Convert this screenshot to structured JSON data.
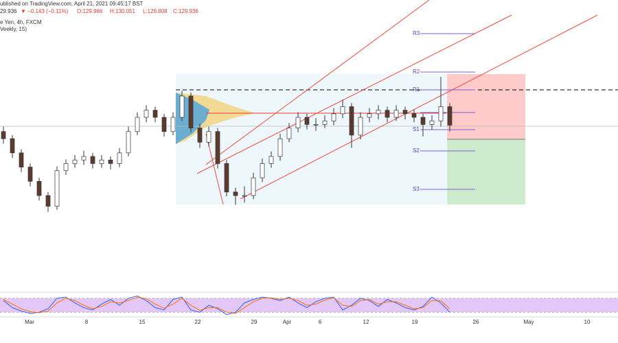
{
  "header": {
    "source": "ublished on TradingView.com, April 21, 2021 09:45:17 BST",
    "price": "29.936",
    "change": "▼ −0.143 (−0.11%)",
    "open": "O:129.966",
    "high": "H:130.051",
    "low": "L:129.808",
    "close": "C:129.936",
    "symbol": "e Yen, 4h, FXCM",
    "indicator": "Veekly, 15)"
  },
  "chart_data": {
    "type": "candlestick",
    "ylim": [
      127.6,
      131.7
    ],
    "ohlc": [
      [
        129.85,
        129.92,
        129.68,
        129.75
      ],
      [
        129.75,
        129.8,
        129.48,
        129.55
      ],
      [
        129.55,
        129.6,
        129.28,
        129.35
      ],
      [
        129.35,
        129.4,
        129.08,
        129.15
      ],
      [
        129.15,
        129.2,
        128.88,
        128.95
      ],
      [
        128.95,
        129.0,
        128.72,
        128.8
      ],
      [
        128.8,
        129.36,
        128.75,
        129.3
      ],
      [
        129.3,
        129.46,
        129.24,
        129.4
      ],
      [
        129.4,
        129.52,
        129.34,
        129.45
      ],
      [
        129.45,
        129.58,
        129.38,
        129.5
      ],
      [
        129.5,
        129.55,
        129.33,
        129.4
      ],
      [
        129.4,
        129.52,
        129.34,
        129.45
      ],
      [
        129.45,
        129.5,
        129.32,
        129.4
      ],
      [
        129.4,
        129.62,
        129.35,
        129.55
      ],
      [
        129.55,
        129.92,
        129.5,
        129.85
      ],
      [
        129.85,
        130.12,
        129.8,
        130.05
      ],
      [
        130.05,
        130.22,
        129.98,
        130.15
      ],
      [
        130.15,
        130.2,
        129.98,
        130.05
      ],
      [
        130.05,
        130.1,
        129.78,
        129.85
      ],
      [
        129.85,
        130.12,
        129.8,
        130.05
      ],
      [
        130.05,
        130.42,
        130.0,
        130.35
      ],
      [
        130.35,
        130.4,
        129.84,
        129.9
      ],
      [
        129.9,
        129.96,
        129.62,
        129.7
      ],
      [
        129.7,
        129.92,
        129.64,
        129.85
      ],
      [
        129.85,
        129.9,
        129.33,
        129.4
      ],
      [
        129.4,
        129.45,
        128.94,
        129.0
      ],
      [
        129.0,
        129.06,
        128.82,
        128.95
      ],
      [
        128.95,
        129.08,
        128.85,
        128.95
      ],
      [
        128.95,
        129.27,
        128.9,
        129.2
      ],
      [
        129.2,
        129.47,
        129.14,
        129.4
      ],
      [
        129.4,
        129.57,
        129.34,
        129.5
      ],
      [
        129.5,
        129.82,
        129.44,
        129.75
      ],
      [
        129.75,
        129.97,
        129.7,
        129.9
      ],
      [
        129.9,
        130.12,
        129.84,
        130.05
      ],
      [
        130.05,
        130.1,
        129.88,
        129.95
      ],
      [
        129.95,
        130.04,
        129.86,
        129.95
      ],
      [
        129.95,
        130.08,
        129.9,
        130.0
      ],
      [
        130.0,
        130.18,
        129.94,
        130.1
      ],
      [
        130.1,
        130.3,
        130.04,
        130.2
      ],
      [
        130.2,
        130.25,
        129.62,
        129.8
      ],
      [
        129.8,
        130.12,
        129.74,
        130.05
      ],
      [
        130.05,
        130.18,
        129.98,
        130.1
      ],
      [
        130.1,
        130.22,
        130.02,
        130.15
      ],
      [
        130.15,
        130.2,
        129.98,
        130.05
      ],
      [
        130.05,
        130.22,
        130.0,
        130.15
      ],
      [
        130.15,
        130.2,
        130.02,
        130.1
      ],
      [
        130.1,
        130.16,
        129.98,
        130.05
      ],
      [
        130.05,
        130.1,
        129.78,
        129.95
      ],
      [
        129.95,
        130.08,
        129.88,
        130.0
      ],
      [
        130.0,
        130.62,
        129.92,
        130.2
      ],
      [
        130.2,
        130.25,
        129.85,
        129.94
      ]
    ],
    "up_color": "#ffffff",
    "down_color": "#5d3a2e",
    "pivots": [
      "R3",
      "R2",
      "R1",
      "S1",
      "S2",
      "S3"
    ],
    "xtick_labels": [
      "Mar",
      "8",
      "15",
      "22",
      "29",
      "Apr",
      "6",
      "12",
      "19",
      "26",
      "May",
      "10"
    ],
    "oscillator": {
      "ylim": [
        0,
        100
      ],
      "band": [
        20,
        80
      ],
      "series": [
        {
          "color": "#2962ff",
          "values": [
            70,
            40,
            25,
            15,
            20,
            35,
            80,
            85,
            60,
            40,
            30,
            55,
            75,
            50,
            80,
            90,
            70,
            40,
            30,
            75,
            85,
            30,
            20,
            50,
            35,
            10,
            20,
            60,
            75,
            85,
            80,
            70,
            85,
            60,
            40,
            65,
            80,
            85,
            30,
            50,
            80,
            70,
            45,
            75,
            60,
            40,
            30,
            45,
            85,
            60,
            20
          ]
        },
        {
          "color": "#ff6d00",
          "values": [
            75,
            55,
            35,
            22,
            18,
            25,
            60,
            80,
            70,
            50,
            35,
            45,
            65,
            60,
            70,
            85,
            78,
            55,
            38,
            55,
            80,
            50,
            28,
            40,
            40,
            20,
            15,
            40,
            65,
            80,
            82,
            75,
            80,
            70,
            50,
            55,
            72,
            82,
            50,
            45,
            70,
            75,
            55,
            65,
            65,
            50,
            35,
            40,
            70,
            70,
            35
          ]
        }
      ]
    }
  }
}
